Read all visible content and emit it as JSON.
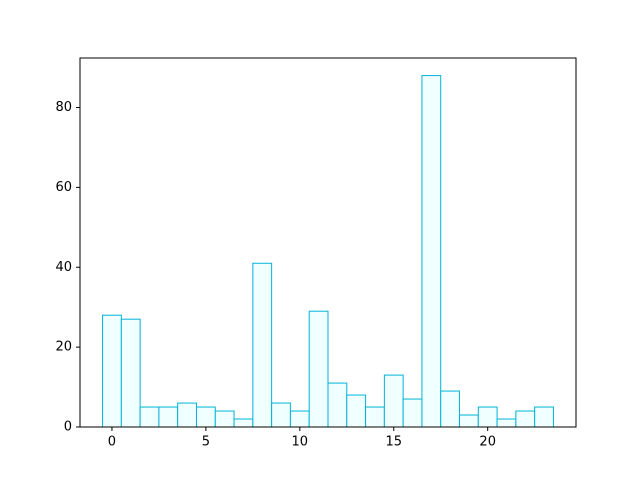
{
  "chart_data": {
    "type": "bar",
    "x": [
      0,
      1,
      2,
      3,
      4,
      5,
      6,
      7,
      8,
      9,
      10,
      11,
      12,
      13,
      14,
      15,
      16,
      17,
      18,
      19,
      20,
      21,
      22,
      23
    ],
    "values": [
      28,
      27,
      5,
      5,
      6,
      5,
      4,
      2,
      41,
      6,
      4,
      29,
      11,
      8,
      5,
      13,
      7,
      88,
      9,
      3,
      5,
      2,
      4,
      5
    ],
    "color": "#f0ffff",
    "edgecolor": "#00b4d8",
    "xlim": [
      -1.7,
      24.7
    ],
    "xticks": [
      0,
      5,
      10,
      15,
      20
    ],
    "ylim": [
      0,
      92.4
    ],
    "yticks": [
      0,
      20,
      40,
      60,
      80
    ],
    "grid": false
  }
}
